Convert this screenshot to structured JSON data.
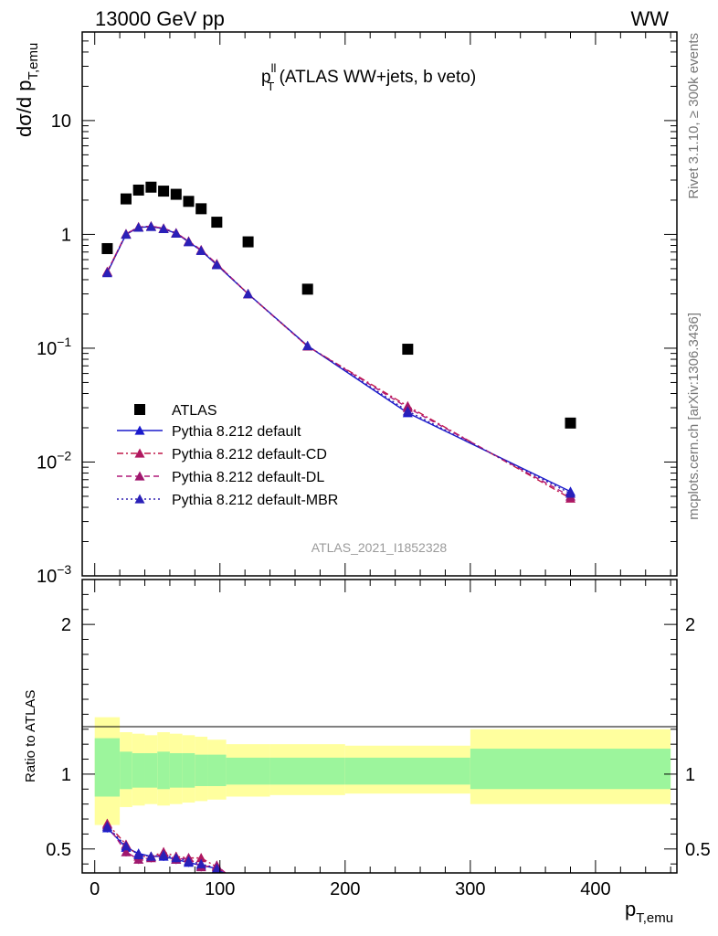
{
  "header": {
    "energy_label": "13000 GeV pp",
    "process_label": "WW",
    "rivet_label": "Rivet 3.1.10, ≥ 300k events",
    "mcplots_label": "mcplots.cern.ch [arXiv:1306.3436]",
    "analysis_id": "ATLAS_2021_I1852328"
  },
  "chart_data": [
    {
      "type": "scatter",
      "title_main": "p",
      "title_sup": "ll",
      "title_sub": "T",
      "title_rest": " (ATLAS WW+jets, b veto)",
      "ylabel_main": "dσ/d p",
      "ylabel_sub": "T,emu",
      "yscale": "log",
      "ylim": [
        0.001,
        60
      ],
      "xlim": [
        -10,
        465
      ],
      "y_ticks": [
        {
          "v": 10,
          "base": "10",
          "exp": ""
        },
        {
          "v": 1,
          "base": "1",
          "exp": ""
        },
        {
          "v": 0.1,
          "base": "10",
          "exp": "−1"
        },
        {
          "v": 0.01,
          "base": "10",
          "exp": "−2"
        },
        {
          "v": 0.001,
          "base": "10",
          "exp": "−3"
        }
      ],
      "data_series": {
        "name": "ATLAS",
        "x": [
          10,
          25,
          35,
          45,
          55,
          65,
          75,
          85,
          97.5,
          122.5,
          170,
          250,
          380
        ],
        "y": [
          0.75,
          2.05,
          2.45,
          2.6,
          2.4,
          2.25,
          1.95,
          1.68,
          1.28,
          0.86,
          0.33,
          0.098,
          0.022
        ]
      },
      "mc_series": [
        {
          "name": "Pythia 8.212 default",
          "color": "#1a1acc",
          "style": "solid",
          "x": [
            10,
            25,
            35,
            45,
            55,
            65,
            75,
            85,
            97.5,
            122.5,
            170,
            250,
            380
          ],
          "y": [
            0.46,
            1.0,
            1.15,
            1.17,
            1.12,
            1.02,
            0.86,
            0.72,
            0.54,
            0.3,
            0.105,
            0.027,
            0.0055
          ]
        },
        {
          "name": "Pythia 8.212 default-CD",
          "color": "#c01848",
          "style": "dashdot",
          "x": [
            10,
            25,
            35,
            45,
            55,
            65,
            75,
            85,
            97.5,
            122.5,
            170,
            250,
            380
          ],
          "y": [
            0.47,
            1.01,
            1.16,
            1.18,
            1.13,
            1.03,
            0.87,
            0.73,
            0.55,
            0.3,
            0.104,
            0.031,
            0.0048
          ]
        },
        {
          "name": "Pythia 8.212 default-DL",
          "color": "#b01878",
          "style": "dashed",
          "x": [
            10,
            25,
            35,
            45,
            55,
            65,
            75,
            85,
            97.5,
            122.5,
            170,
            250,
            380
          ],
          "y": [
            0.47,
            1.01,
            1.16,
            1.18,
            1.13,
            1.03,
            0.87,
            0.73,
            0.55,
            0.3,
            0.104,
            0.03,
            0.005
          ]
        },
        {
          "name": "Pythia 8.212 default-MBR",
          "color": "#3020b0",
          "style": "dotted",
          "x": [
            10,
            25,
            35,
            45,
            55,
            65,
            75,
            85,
            97.5,
            122.5,
            170,
            250,
            380
          ],
          "y": [
            0.46,
            1.0,
            1.15,
            1.17,
            1.12,
            1.02,
            0.86,
            0.72,
            0.54,
            0.3,
            0.105,
            0.028,
            0.0053
          ]
        }
      ],
      "marker_colors": [
        "#1a1acc",
        "#b01860",
        "#a0186e",
        "#2a20b8"
      ]
    },
    {
      "type": "scatter",
      "ylabel": "Ratio to ATLAS",
      "xlabel_main": "p",
      "xlabel_sub": "T,emu",
      "ylim": [
        0.34,
        2.3
      ],
      "xlim": [
        -10,
        465
      ],
      "y_ticks": [
        0.5,
        1,
        2
      ],
      "y_tick_labels": [
        "0.5",
        "1",
        "2"
      ],
      "x_ticks": [
        0,
        100,
        200,
        300,
        400
      ],
      "x_tick_labels": [
        "0",
        "100",
        "200",
        "300",
        "400"
      ],
      "bands": {
        "edges": [
          0,
          20,
          30,
          40,
          50,
          60,
          70,
          80,
          90,
          105,
          140,
          200,
          300,
          460
        ],
        "yellow_low": [
          0.66,
          0.78,
          0.79,
          0.8,
          0.79,
          0.8,
          0.81,
          0.82,
          0.83,
          0.85,
          0.86,
          0.87,
          0.8
        ],
        "yellow_high": [
          1.38,
          1.28,
          1.27,
          1.26,
          1.28,
          1.27,
          1.26,
          1.25,
          1.23,
          1.2,
          1.2,
          1.19,
          1.3
        ],
        "green_low": [
          0.85,
          0.9,
          0.91,
          0.91,
          0.9,
          0.91,
          0.91,
          0.92,
          0.92,
          0.93,
          0.93,
          0.93,
          0.9
        ],
        "green_high": [
          1.24,
          1.15,
          1.14,
          1.14,
          1.15,
          1.14,
          1.14,
          1.13,
          1.13,
          1.11,
          1.11,
          1.11,
          1.17
        ]
      },
      "ratio_series": [
        {
          "name": "Pythia 8.212 default",
          "x": [
            10,
            25,
            35,
            45,
            55,
            65,
            75,
            85,
            97.5
          ],
          "y": [
            0.64,
            0.51,
            0.47,
            0.45,
            0.45,
            0.43,
            0.41,
            0.39,
            0.37
          ]
        },
        {
          "name": "Pythia 8.212 default-CD",
          "x": [
            10,
            25,
            35,
            45,
            55,
            65,
            75,
            85,
            97.5
          ],
          "y": [
            0.67,
            0.53,
            0.45,
            0.45,
            0.48,
            0.45,
            0.44,
            0.44,
            0.38
          ]
        },
        {
          "name": "Pythia 8.212 default-DL",
          "x": [
            10,
            25,
            35,
            45,
            55,
            65,
            75,
            85,
            97.5
          ],
          "y": [
            0.66,
            0.48,
            0.43,
            0.44,
            0.47,
            0.43,
            0.44,
            0.38,
            0.39
          ]
        },
        {
          "name": "Pythia 8.212 default-MBR",
          "x": [
            10,
            25,
            35,
            45,
            55,
            65,
            75,
            85,
            97.5
          ],
          "y": [
            0.65,
            0.52,
            0.46,
            0.45,
            0.46,
            0.44,
            0.42,
            0.4,
            0.37
          ]
        }
      ]
    }
  ]
}
